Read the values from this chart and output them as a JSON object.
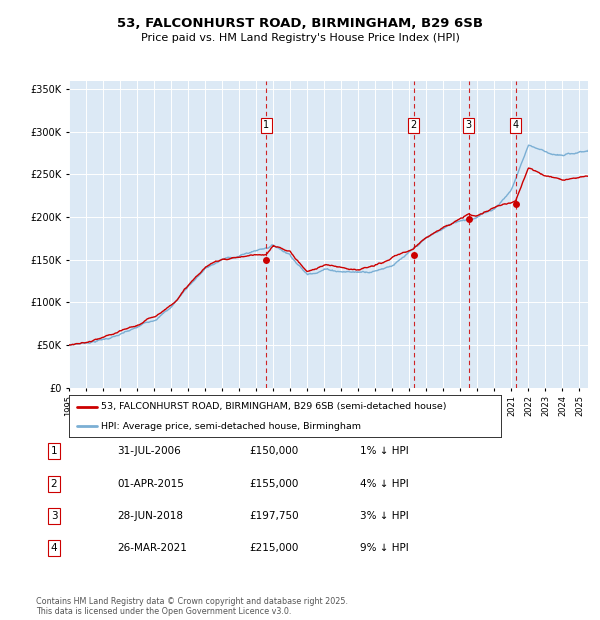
{
  "title": "53, FALCONHURST ROAD, BIRMINGHAM, B29 6SB",
  "subtitle": "Price paid vs. HM Land Registry's House Price Index (HPI)",
  "plot_bg_color": "#dce9f5",
  "ylim": [
    0,
    360000
  ],
  "yticks": [
    0,
    50000,
    100000,
    150000,
    200000,
    250000,
    300000,
    350000
  ],
  "transactions": [
    {
      "label": "1",
      "date_str": "31-JUL-2006",
      "price": 150000,
      "price_str": "£150,000",
      "pct_str": "1% ↓ HPI",
      "x_year": 2006.58
    },
    {
      "label": "2",
      "date_str": "01-APR-2015",
      "price": 155000,
      "price_str": "£155,000",
      "pct_str": "4% ↓ HPI",
      "x_year": 2015.25
    },
    {
      "label": "3",
      "date_str": "28-JUN-2018",
      "price": 197750,
      "price_str": "£197,750",
      "pct_str": "3% ↓ HPI",
      "x_year": 2018.49
    },
    {
      "label": "4",
      "date_str": "26-MAR-2021",
      "price": 215000,
      "price_str": "£215,000",
      "pct_str": "9% ↓ HPI",
      "x_year": 2021.24
    }
  ],
  "legend_label_red": "53, FALCONHURST ROAD, BIRMINGHAM, B29 6SB (semi-detached house)",
  "legend_label_blue": "HPI: Average price, semi-detached house, Birmingham",
  "footer_line1": "Contains HM Land Registry data © Crown copyright and database right 2025.",
  "footer_line2": "This data is licensed under the Open Government Licence v3.0.",
  "red_color": "#cc0000",
  "blue_color": "#7bafd4",
  "grid_color": "#ffffff",
  "xmin": 1995,
  "xmax": 2025.5,
  "figwidth": 6.0,
  "figheight": 6.2,
  "dpi": 100
}
